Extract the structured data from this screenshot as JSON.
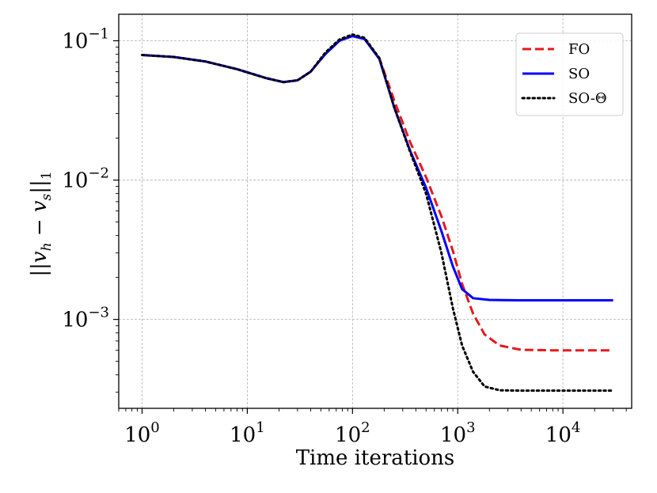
{
  "chart_data": {
    "type": "line",
    "title": "",
    "xlabel": "Time iterations",
    "ylabel": "||v_h − v_s||_1",
    "xscale": "log",
    "yscale": "log",
    "xlim": [
      0.6,
      45000
    ],
    "ylim": [
      0.00023,
      0.155
    ],
    "xticks": [
      {
        "value": 1,
        "mantissa": "10",
        "exp": "0"
      },
      {
        "value": 10,
        "mantissa": "10",
        "exp": "1"
      },
      {
        "value": 100,
        "mantissa": "10",
        "exp": "2"
      },
      {
        "value": 1000,
        "mantissa": "10",
        "exp": "3"
      },
      {
        "value": 10000,
        "mantissa": "10",
        "exp": "4"
      }
    ],
    "yticks": [
      {
        "value": 0.001,
        "mantissa": "10",
        "exp": "−3"
      },
      {
        "value": 0.01,
        "mantissa": "10",
        "exp": "−2"
      },
      {
        "value": 0.1,
        "mantissa": "10",
        "exp": "−1"
      }
    ],
    "grid": true,
    "legend_position": "top-right",
    "series": [
      {
        "name": "FO",
        "color": "#e31a1c",
        "style": "dashed",
        "points": [
          [
            1,
            0.079
          ],
          [
            2,
            0.0765
          ],
          [
            4,
            0.071
          ],
          [
            8,
            0.0625
          ],
          [
            15,
            0.054
          ],
          [
            22,
            0.0505
          ],
          [
            30,
            0.052
          ],
          [
            40,
            0.06
          ],
          [
            55,
            0.08
          ],
          [
            75,
            0.1
          ],
          [
            100,
            0.109
          ],
          [
            130,
            0.103
          ],
          [
            180,
            0.075
          ],
          [
            250,
            0.037
          ],
          [
            350,
            0.019
          ],
          [
            500,
            0.0105
          ],
          [
            700,
            0.0055
          ],
          [
            900,
            0.0031
          ],
          [
            1100,
            0.0018
          ],
          [
            1400,
            0.0011
          ],
          [
            1800,
            0.00078
          ],
          [
            2500,
            0.00065
          ],
          [
            4000,
            0.000605
          ],
          [
            8000,
            0.0006
          ],
          [
            30000,
            0.0006
          ]
        ]
      },
      {
        "name": "SO",
        "color": "#0000ff",
        "style": "solid",
        "points": [
          [
            1,
            0.079
          ],
          [
            2,
            0.0765
          ],
          [
            4,
            0.071
          ],
          [
            8,
            0.0625
          ],
          [
            15,
            0.054
          ],
          [
            22,
            0.0505
          ],
          [
            30,
            0.052
          ],
          [
            40,
            0.06
          ],
          [
            55,
            0.08
          ],
          [
            75,
            0.1
          ],
          [
            100,
            0.108
          ],
          [
            130,
            0.103
          ],
          [
            180,
            0.074
          ],
          [
            250,
            0.033
          ],
          [
            350,
            0.0165
          ],
          [
            500,
            0.0088
          ],
          [
            700,
            0.0043
          ],
          [
            900,
            0.0024
          ],
          [
            1100,
            0.00165
          ],
          [
            1400,
            0.00142
          ],
          [
            2000,
            0.00138
          ],
          [
            4000,
            0.00137
          ],
          [
            30000,
            0.00137
          ]
        ]
      },
      {
        "name": "SO-Θ",
        "color": "#000000",
        "style": "dotted",
        "points": [
          [
            1,
            0.079
          ],
          [
            2,
            0.0765
          ],
          [
            4,
            0.071
          ],
          [
            8,
            0.0625
          ],
          [
            15,
            0.054
          ],
          [
            22,
            0.0505
          ],
          [
            30,
            0.052
          ],
          [
            40,
            0.06
          ],
          [
            55,
            0.082
          ],
          [
            75,
            0.102
          ],
          [
            100,
            0.111
          ],
          [
            130,
            0.105
          ],
          [
            180,
            0.075
          ],
          [
            250,
            0.033
          ],
          [
            350,
            0.0162
          ],
          [
            500,
            0.008
          ],
          [
            700,
            0.003
          ],
          [
            900,
            0.0012
          ],
          [
            1100,
            0.00065
          ],
          [
            1400,
            0.00042
          ],
          [
            1800,
            0.00033
          ],
          [
            2500,
            0.00031
          ],
          [
            4000,
            0.000308
          ],
          [
            30000,
            0.000308
          ]
        ]
      }
    ]
  }
}
